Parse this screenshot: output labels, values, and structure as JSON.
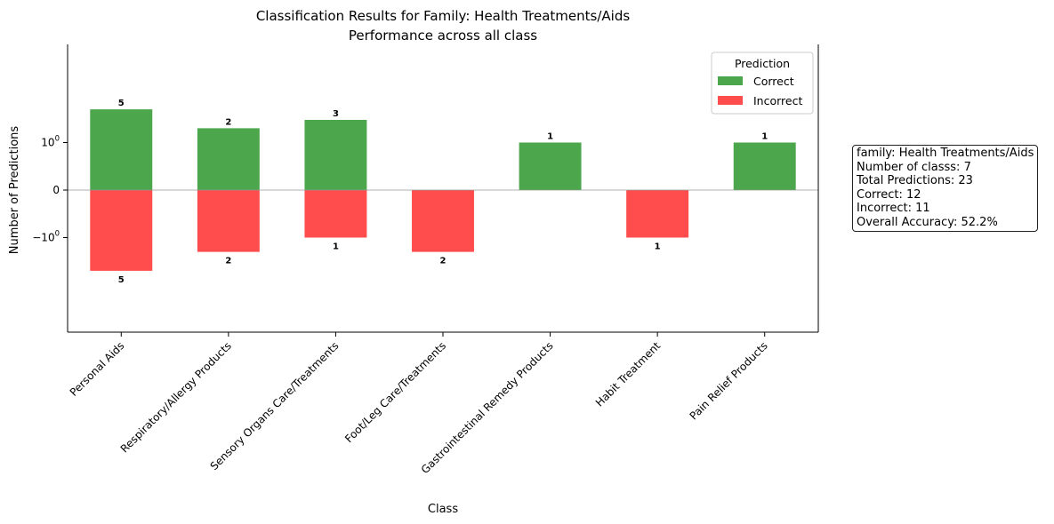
{
  "chart_data": {
    "type": "bar",
    "title": "Classification Results for Family: Health Treatments/Aids",
    "subtitle": "Performance across all class",
    "xlabel": "Class",
    "ylabel": "Number of Predictions",
    "yscale": "symlog",
    "yticks": [
      "10^0",
      "0",
      "-10^0"
    ],
    "grid": false,
    "legend": {
      "title": "Prediction",
      "placement": "top-right"
    },
    "categories": [
      "Personal Aids",
      "Respiratory/Allergy Products",
      "Sensory Organs Care/Treatments",
      "Foot/Leg Care/Treatments",
      "Gastrointestinal Remedy Products",
      "Habit Treatment",
      "Pain Relief Products"
    ],
    "series": [
      {
        "name": "Correct",
        "color": "#4ca64c",
        "values": [
          5,
          2,
          3,
          0,
          1,
          0,
          1
        ]
      },
      {
        "name": "Incorrect",
        "color": "#ff4c4c",
        "values": [
          5,
          2,
          1,
          2,
          0,
          1,
          0
        ]
      }
    ]
  },
  "info_box": {
    "lines": [
      "family: Health Treatments/Aids",
      "Number of classs: 7",
      "Total Predictions: 23",
      "Correct: 12",
      "Incorrect: 11",
      "Overall Accuracy: 52.2%"
    ]
  }
}
